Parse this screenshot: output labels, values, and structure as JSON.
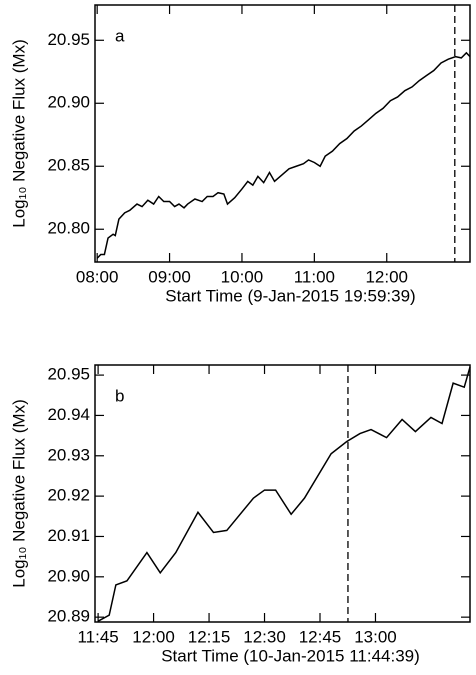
{
  "chart_data": [
    {
      "type": "line",
      "label": "a",
      "xlabel": "Start Time (9-Jan-2015 19:59:39)",
      "ylabel": "Log₁₀ Negative Flux (Mx)",
      "xlim": [
        7.97,
        13.15
      ],
      "ylim": [
        20.774,
        20.978
      ],
      "xticks": [
        {
          "value": 8,
          "label": "08:00"
        },
        {
          "value": 9,
          "label": "09:00"
        },
        {
          "value": 10,
          "label": "10:00"
        },
        {
          "value": 11,
          "label": "11:00"
        },
        {
          "value": 12,
          "label": "12:00"
        }
      ],
      "yticks": [
        {
          "value": 20.8,
          "label": "20.80"
        },
        20.85,
        {
          "value": 20.9,
          "label": "20.90"
        },
        20.95
      ],
      "vline": 12.94,
      "series": [
        {
          "color": "#000000",
          "x": [
            8.0,
            8.05,
            8.1,
            8.15,
            8.22,
            8.25,
            8.3,
            8.38,
            8.45,
            8.55,
            8.62,
            8.7,
            8.78,
            8.85,
            8.92,
            9.0,
            9.07,
            9.13,
            9.2,
            9.25,
            9.35,
            9.45,
            9.52,
            9.6,
            9.67,
            9.75,
            9.8,
            9.9,
            10.0,
            10.08,
            10.15,
            10.22,
            10.3,
            10.38,
            10.45,
            10.55,
            10.65,
            10.75,
            10.85,
            10.92,
            11.0,
            11.08,
            11.15,
            11.25,
            11.35,
            11.45,
            11.55,
            11.65,
            11.75,
            11.85,
            11.95,
            12.05,
            12.15,
            12.25,
            12.35,
            12.45,
            12.55,
            12.65,
            12.75,
            12.85,
            12.95,
            13.03,
            13.1,
            13.15
          ],
          "values": [
            20.777,
            20.78,
            20.78,
            20.793,
            20.796,
            20.795,
            20.808,
            20.813,
            20.815,
            20.82,
            20.818,
            20.823,
            20.82,
            20.826,
            20.822,
            20.822,
            20.818,
            20.82,
            20.817,
            20.82,
            20.824,
            20.822,
            20.826,
            20.826,
            20.829,
            20.828,
            20.82,
            20.825,
            20.832,
            20.838,
            20.835,
            20.842,
            20.837,
            20.845,
            20.838,
            20.843,
            20.848,
            20.85,
            20.852,
            20.855,
            20.853,
            20.85,
            20.858,
            20.862,
            20.868,
            20.872,
            20.878,
            20.882,
            20.887,
            20.892,
            20.896,
            20.902,
            20.905,
            20.91,
            20.913,
            20.918,
            20.922,
            20.926,
            20.932,
            20.935,
            20.937,
            20.936,
            20.94,
            20.937
          ]
        }
      ]
    },
    {
      "type": "line",
      "label": "b",
      "xlabel": "Start Time (10-Jan-2015 11:44:39)",
      "ylabel": "Log₁₀ Negative Flux (Mx)",
      "xlim": [
        11.736,
        13.426
      ],
      "ylim": [
        20.8888,
        20.9525
      ],
      "xticks": [
        {
          "value": 11.75,
          "label": "11:45"
        },
        {
          "value": 12,
          "label": "12:00"
        },
        {
          "value": 12.25,
          "label": "12:15"
        },
        {
          "value": 12.5,
          "label": "12:30"
        },
        {
          "value": 12.75,
          "label": "12:45"
        },
        {
          "value": 13,
          "label": "13:00"
        }
      ],
      "yticks": [
        20.89,
        {
          "value": 20.9,
          "label": "20.90"
        },
        20.91,
        20.92,
        20.93,
        20.94,
        20.95
      ],
      "vline": 12.876,
      "series": [
        {
          "color": "#000000",
          "x": [
            11.75,
            11.8,
            11.83,
            11.88,
            11.97,
            12.03,
            12.1,
            12.2,
            12.27,
            12.33,
            12.45,
            12.5,
            12.55,
            12.62,
            12.68,
            12.8,
            12.87,
            12.93,
            12.98,
            13.05,
            13.12,
            13.18,
            13.25,
            13.3,
            13.35,
            13.4,
            13.426
          ],
          "values": [
            20.889,
            20.8905,
            20.898,
            20.899,
            20.906,
            20.901,
            20.906,
            20.916,
            20.911,
            20.9115,
            20.9195,
            20.9215,
            20.9215,
            20.9155,
            20.9195,
            20.9305,
            20.9335,
            20.9355,
            20.9365,
            20.9345,
            20.939,
            20.936,
            20.9395,
            20.938,
            20.948,
            20.947,
            20.952
          ]
        }
      ]
    }
  ]
}
